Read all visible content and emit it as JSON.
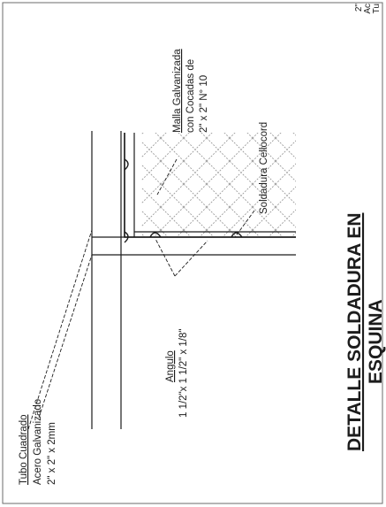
{
  "page": {
    "title_line1": "DETALLE  SOLDADURA EN",
    "title_line2": "ESQUINA",
    "corner_fragment": [
      "Tu",
      "Ac",
      "2\""
    ]
  },
  "labels": {
    "malla": [
      "Malla Galvanizada",
      "con Cocadas  de",
      "2\" x 2\" N° 10"
    ],
    "soldadura": "Soldadura  Cellocord",
    "angulo": [
      "Angulo",
      "1 1/2\"x 1 1/2\" x 1/8\""
    ],
    "tubo": [
      "Tubo Cuadrado",
      "Acero Galvanizado",
      "2\" x 2\" x 2mm"
    ]
  },
  "colors": {
    "ink": "#1c1c1c",
    "mesh": "#9a9a9a",
    "border": "#6b6b6b"
  }
}
